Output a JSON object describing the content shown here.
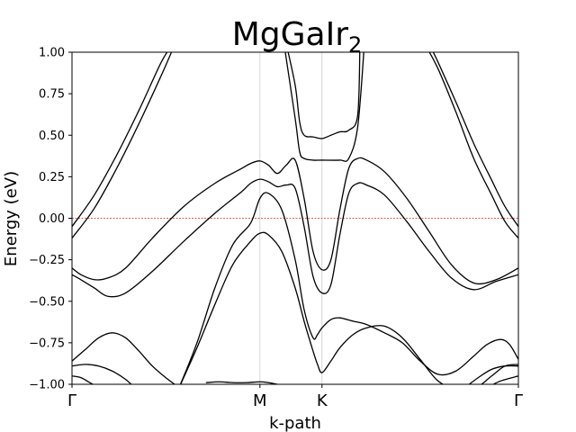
{
  "chart_data": {
    "type": "line",
    "title": "MgGaIr",
    "title_subscript": "2",
    "xlabel": "k-path",
    "ylabel": "Energy (eV)",
    "ylim": [
      -1.0,
      1.0
    ],
    "xlim": [
      0,
      1
    ],
    "yticks": [
      -1.0,
      -0.75,
      -0.5,
      -0.25,
      0.0,
      0.25,
      0.5,
      0.75,
      1.0
    ],
    "ytick_labels": [
      "−1.00",
      "−0.75",
      "−0.50",
      "−0.25",
      "0.00",
      "0.25",
      "0.50",
      "0.75",
      "1.00"
    ],
    "kpoints": [
      {
        "label": "Γ",
        "x": 0.0
      },
      {
        "label": "M",
        "x": 0.421
      },
      {
        "label": "K",
        "x": 0.56
      },
      {
        "label": "Γ",
        "x": 1.0
      }
    ],
    "fermi_level": 0.0,
    "line_color": "#000000",
    "fermi_color": "#d62728",
    "grid": "vertical lines at high-symmetry points",
    "series": [
      {
        "x": [
          0.0,
          0.05,
          0.1,
          0.15,
          0.2,
          0.226
        ],
        "y": [
          -0.05,
          0.14,
          0.38,
          0.65,
          0.94,
          1.05
        ]
      },
      {
        "x": [
          0.0,
          0.05,
          0.1,
          0.15,
          0.2,
          0.226
        ],
        "y": [
          -0.12,
          0.06,
          0.3,
          0.57,
          0.86,
          1.02
        ]
      },
      {
        "x": [
          0.0,
          0.02,
          0.05,
          0.08,
          0.12,
          0.18,
          0.25,
          0.32,
          0.38,
          0.4,
          0.421,
          0.44,
          0.46,
          0.48,
          0.5,
          0.52,
          0.54,
          0.56,
          0.58,
          0.6,
          0.62,
          0.64,
          0.66,
          0.7,
          0.75,
          0.8,
          0.85,
          0.9,
          0.95,
          1.0
        ],
        "y": [
          -0.3,
          -0.34,
          -0.37,
          -0.36,
          -0.3,
          -0.12,
          0.07,
          0.21,
          0.3,
          0.33,
          0.345,
          0.32,
          0.27,
          0.32,
          0.35,
          0.12,
          -0.2,
          -0.31,
          -0.25,
          0.05,
          0.3,
          0.36,
          0.35,
          0.28,
          0.12,
          -0.08,
          -0.28,
          -0.39,
          -0.37,
          -0.3
        ]
      },
      {
        "x": [
          0.0,
          0.02,
          0.05,
          0.08,
          0.12,
          0.18,
          0.25,
          0.32,
          0.38,
          0.4,
          0.421,
          0.44,
          0.46,
          0.48,
          0.5,
          0.52,
          0.54,
          0.56,
          0.58,
          0.6,
          0.62,
          0.64,
          0.66,
          0.7,
          0.75,
          0.8,
          0.85,
          0.9,
          0.95,
          1.0
        ],
        "y": [
          -0.34,
          -0.37,
          -0.42,
          -0.47,
          -0.45,
          -0.32,
          -0.14,
          0.03,
          0.16,
          0.21,
          0.235,
          0.22,
          0.19,
          0.2,
          0.18,
          -0.05,
          -0.35,
          -0.45,
          -0.4,
          -0.1,
          0.15,
          0.21,
          0.2,
          0.14,
          -0.02,
          -0.2,
          -0.36,
          -0.43,
          -0.38,
          -0.34
        ]
      },
      {
        "x": [
          0.0,
          0.03,
          0.06,
          0.09,
          0.12,
          0.15,
          0.18,
          0.21,
          0.24
        ],
        "y": [
          -0.86,
          -0.79,
          -0.72,
          -0.69,
          -0.72,
          -0.8,
          -0.89,
          -0.96,
          -1.02
        ]
      },
      {
        "x": [
          0.0,
          0.03,
          0.06,
          0.09,
          0.12,
          0.14
        ],
        "y": [
          -0.89,
          -0.88,
          -0.89,
          -0.92,
          -0.97,
          -1.02
        ]
      },
      {
        "x": [
          0.0,
          0.02,
          0.04,
          0.06
        ],
        "y": [
          -0.95,
          -0.96,
          -0.99,
          -1.02
        ]
      },
      {
        "x": [
          0.24,
          0.28,
          0.32,
          0.36,
          0.4,
          0.421,
          0.44,
          0.47,
          0.5,
          0.52,
          0.54,
          0.55,
          0.56,
          0.58,
          0.6,
          0.63,
          0.66,
          0.7,
          0.74,
          0.78,
          0.82,
          0.86,
          0.9,
          0.93,
          0.96,
          0.98,
          1.0
        ],
        "y": [
          -1.02,
          -0.75,
          -0.42,
          -0.16,
          -0.03,
          0.12,
          0.15,
          0.05,
          -0.25,
          -0.55,
          -0.72,
          -0.7,
          -0.66,
          -0.61,
          -0.6,
          -0.62,
          -0.64,
          -0.69,
          -0.75,
          -0.86,
          -0.94,
          -0.92,
          -0.83,
          -0.76,
          -0.73,
          -0.76,
          -0.85
        ]
      },
      {
        "x": [
          0.24,
          0.28,
          0.32,
          0.36,
          0.4,
          0.421,
          0.44,
          0.47,
          0.5,
          0.52,
          0.54,
          0.55,
          0.56,
          0.58,
          0.6,
          0.63,
          0.66,
          0.7,
          0.74,
          0.78,
          0.82,
          0.86,
          0.9,
          0.94,
          0.97,
          1.0
        ],
        "y": [
          -1.02,
          -0.78,
          -0.52,
          -0.28,
          -0.14,
          -0.09,
          -0.1,
          -0.2,
          -0.42,
          -0.62,
          -0.8,
          -0.88,
          -0.93,
          -0.86,
          -0.78,
          -0.7,
          -0.66,
          -0.65,
          -0.72,
          -0.85,
          -0.98,
          -1.03,
          -1.03,
          -0.95,
          -0.89,
          -0.88
        ]
      },
      {
        "x": [
          0.3,
          0.33,
          0.36,
          0.39,
          0.421,
          0.44,
          0.46
        ],
        "y": [
          -0.99,
          -0.985,
          -0.99,
          -0.99,
          -0.985,
          -0.99,
          -1.0
        ]
      },
      {
        "x": [
          0.48,
          0.5,
          0.51,
          0.52,
          0.54,
          0.56,
          0.58,
          0.6,
          0.62,
          0.64,
          0.645
        ],
        "y": [
          1.05,
          0.8,
          0.58,
          0.5,
          0.49,
          0.48,
          0.5,
          0.52,
          0.53,
          0.62,
          1.05
        ]
      },
      {
        "x": [
          0.475,
          0.5,
          0.51,
          0.52,
          0.54,
          0.56,
          0.6,
          0.62,
          0.64,
          0.655
        ],
        "y": [
          1.05,
          0.6,
          0.4,
          0.36,
          0.35,
          0.35,
          0.35,
          0.36,
          0.55,
          1.05
        ]
      },
      {
        "x": [
          0.8,
          0.82,
          0.86,
          0.9,
          0.94,
          0.97,
          1.0
        ],
        "y": [
          1.05,
          0.94,
          0.7,
          0.45,
          0.23,
          0.07,
          -0.05
        ]
      },
      {
        "x": [
          0.79,
          0.82,
          0.86,
          0.9,
          0.94,
          0.97,
          1.0
        ],
        "y": [
          1.05,
          0.9,
          0.64,
          0.36,
          0.14,
          -0.02,
          -0.12
        ]
      },
      {
        "x": [
          0.88,
          0.91,
          0.94,
          0.97,
          1.0
        ],
        "y": [
          -1.02,
          -0.96,
          -0.91,
          -0.89,
          -0.89
        ]
      },
      {
        "x": [
          0.93,
          0.96,
          1.0
        ],
        "y": [
          -1.02,
          -0.98,
          -0.95
        ]
      }
    ]
  }
}
